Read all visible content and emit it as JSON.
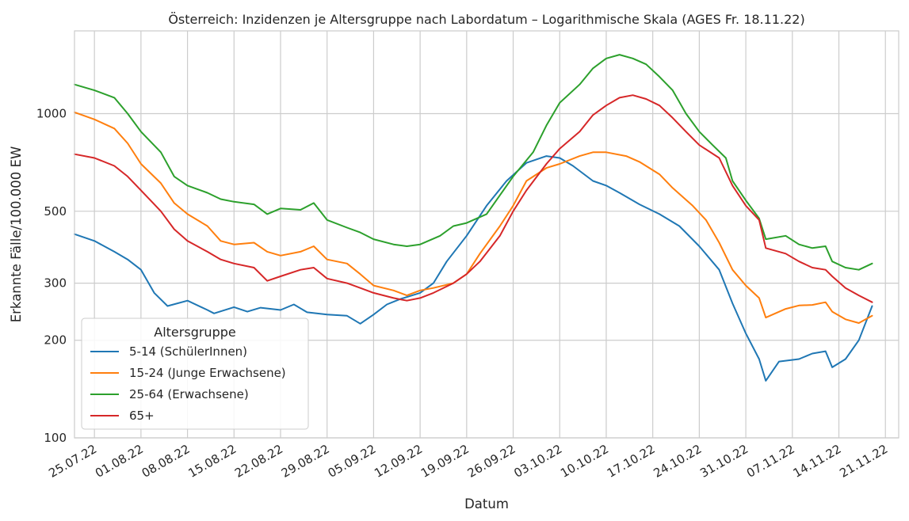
{
  "chart_data": {
    "type": "line",
    "title": "Österreich: Inzidenzen je Altersgruppe nach Labordatum – Logarithmische Skala (AGES Fr. 18.11.22)",
    "xlabel": "Datum",
    "ylabel": "Erkannte Fälle/100.000 EW",
    "yscale": "log",
    "ylim": [
      100,
      1800
    ],
    "xlim": [
      "2022-07-22",
      "2022-11-23"
    ],
    "grid": true,
    "legend_title": "Altersgruppe",
    "legend_position": "lower-left",
    "x_ticks": [
      "25.07.22",
      "01.08.22",
      "08.08.22",
      "15.08.22",
      "22.08.22",
      "29.08.22",
      "05.09.22",
      "12.09.22",
      "19.09.22",
      "26.09.22",
      "03.10.22",
      "10.10.22",
      "17.10.22",
      "24.10.22",
      "31.10.22",
      "07.11.22",
      "14.11.22",
      "21.11.22"
    ],
    "y_ticks": [
      "100",
      "200",
      "300",
      "500",
      "1000"
    ],
    "series": [
      {
        "name": "5-14 (SchülerInnen)",
        "color": "#1f77b4",
        "points": [
          [
            "2022-07-22",
            425
          ],
          [
            "2022-07-25",
            405
          ],
          [
            "2022-07-28",
            375
          ],
          [
            "2022-07-30",
            355
          ],
          [
            "2022-08-01",
            330
          ],
          [
            "2022-08-03",
            280
          ],
          [
            "2022-08-05",
            255
          ],
          [
            "2022-08-08",
            265
          ],
          [
            "2022-08-11",
            248
          ],
          [
            "2022-08-12",
            242
          ],
          [
            "2022-08-15",
            253
          ],
          [
            "2022-08-17",
            245
          ],
          [
            "2022-08-19",
            252
          ],
          [
            "2022-08-22",
            248
          ],
          [
            "2022-08-24",
            258
          ],
          [
            "2022-08-26",
            244
          ],
          [
            "2022-08-29",
            240
          ],
          [
            "2022-09-01",
            238
          ],
          [
            "2022-09-03",
            225
          ],
          [
            "2022-09-05",
            240
          ],
          [
            "2022-09-07",
            258
          ],
          [
            "2022-09-09",
            268
          ],
          [
            "2022-09-12",
            280
          ],
          [
            "2022-09-14",
            300
          ],
          [
            "2022-09-16",
            350
          ],
          [
            "2022-09-19",
            420
          ],
          [
            "2022-09-22",
            520
          ],
          [
            "2022-09-25",
            620
          ],
          [
            "2022-09-28",
            705
          ],
          [
            "2022-10-01",
            740
          ],
          [
            "2022-10-03",
            730
          ],
          [
            "2022-10-05",
            690
          ],
          [
            "2022-10-08",
            620
          ],
          [
            "2022-10-10",
            600
          ],
          [
            "2022-10-12",
            570
          ],
          [
            "2022-10-15",
            525
          ],
          [
            "2022-10-18",
            490
          ],
          [
            "2022-10-21",
            450
          ],
          [
            "2022-10-24",
            390
          ],
          [
            "2022-10-27",
            330
          ],
          [
            "2022-10-29",
            260
          ],
          [
            "2022-10-31",
            210
          ],
          [
            "2022-11-02",
            175
          ],
          [
            "2022-11-03",
            150
          ],
          [
            "2022-11-05",
            172
          ],
          [
            "2022-11-08",
            175
          ],
          [
            "2022-11-10",
            182
          ],
          [
            "2022-11-12",
            185
          ],
          [
            "2022-11-13",
            165
          ],
          [
            "2022-11-15",
            175
          ],
          [
            "2022-11-17",
            200
          ],
          [
            "2022-11-19",
            255
          ]
        ]
      },
      {
        "name": "15-24 (Junge Erwachsene)",
        "color": "#ff7f0e",
        "points": [
          [
            "2022-07-22",
            1010
          ],
          [
            "2022-07-25",
            960
          ],
          [
            "2022-07-28",
            900
          ],
          [
            "2022-07-30",
            810
          ],
          [
            "2022-08-01",
            700
          ],
          [
            "2022-08-04",
            610
          ],
          [
            "2022-08-06",
            530
          ],
          [
            "2022-08-08",
            490
          ],
          [
            "2022-08-11",
            450
          ],
          [
            "2022-08-13",
            405
          ],
          [
            "2022-08-15",
            395
          ],
          [
            "2022-08-18",
            400
          ],
          [
            "2022-08-20",
            375
          ],
          [
            "2022-08-22",
            365
          ],
          [
            "2022-08-25",
            375
          ],
          [
            "2022-08-27",
            390
          ],
          [
            "2022-08-29",
            355
          ],
          [
            "2022-09-01",
            345
          ],
          [
            "2022-09-03",
            320
          ],
          [
            "2022-09-05",
            295
          ],
          [
            "2022-09-08",
            285
          ],
          [
            "2022-09-10",
            275
          ],
          [
            "2022-09-12",
            285
          ],
          [
            "2022-09-14",
            290
          ],
          [
            "2022-09-17",
            300
          ],
          [
            "2022-09-19",
            320
          ],
          [
            "2022-09-21",
            370
          ],
          [
            "2022-09-24",
            450
          ],
          [
            "2022-09-26",
            520
          ],
          [
            "2022-09-28",
            620
          ],
          [
            "2022-10-01",
            680
          ],
          [
            "2022-10-03",
            700
          ],
          [
            "2022-10-06",
            740
          ],
          [
            "2022-10-08",
            760
          ],
          [
            "2022-10-10",
            760
          ],
          [
            "2022-10-13",
            740
          ],
          [
            "2022-10-15",
            710
          ],
          [
            "2022-10-18",
            650
          ],
          [
            "2022-10-20",
            590
          ],
          [
            "2022-10-23",
            520
          ],
          [
            "2022-10-25",
            470
          ],
          [
            "2022-10-27",
            400
          ],
          [
            "2022-10-29",
            330
          ],
          [
            "2022-10-31",
            295
          ],
          [
            "2022-11-02",
            270
          ],
          [
            "2022-11-03",
            235
          ],
          [
            "2022-11-06",
            250
          ],
          [
            "2022-11-08",
            256
          ],
          [
            "2022-11-10",
            257
          ],
          [
            "2022-11-12",
            262
          ],
          [
            "2022-11-13",
            245
          ],
          [
            "2022-11-15",
            232
          ],
          [
            "2022-11-17",
            226
          ],
          [
            "2022-11-19",
            238
          ]
        ]
      },
      {
        "name": "25-64 (Erwachsene)",
        "color": "#2ca02c",
        "points": [
          [
            "2022-07-22",
            1230
          ],
          [
            "2022-07-25",
            1180
          ],
          [
            "2022-07-28",
            1120
          ],
          [
            "2022-07-30",
            1000
          ],
          [
            "2022-08-01",
            880
          ],
          [
            "2022-08-04",
            760
          ],
          [
            "2022-08-06",
            640
          ],
          [
            "2022-08-08",
            600
          ],
          [
            "2022-08-11",
            570
          ],
          [
            "2022-08-13",
            545
          ],
          [
            "2022-08-15",
            535
          ],
          [
            "2022-08-18",
            525
          ],
          [
            "2022-08-20",
            490
          ],
          [
            "2022-08-22",
            510
          ],
          [
            "2022-08-25",
            505
          ],
          [
            "2022-08-27",
            530
          ],
          [
            "2022-08-29",
            470
          ],
          [
            "2022-09-01",
            445
          ],
          [
            "2022-09-03",
            430
          ],
          [
            "2022-09-05",
            410
          ],
          [
            "2022-09-08",
            395
          ],
          [
            "2022-09-10",
            390
          ],
          [
            "2022-09-12",
            395
          ],
          [
            "2022-09-15",
            420
          ],
          [
            "2022-09-17",
            450
          ],
          [
            "2022-09-19",
            460
          ],
          [
            "2022-09-22",
            490
          ],
          [
            "2022-09-24",
            560
          ],
          [
            "2022-09-26",
            640
          ],
          [
            "2022-09-29",
            760
          ],
          [
            "2022-10-01",
            920
          ],
          [
            "2022-10-03",
            1080
          ],
          [
            "2022-10-06",
            1230
          ],
          [
            "2022-10-08",
            1380
          ],
          [
            "2022-10-10",
            1480
          ],
          [
            "2022-10-12",
            1520
          ],
          [
            "2022-10-14",
            1480
          ],
          [
            "2022-10-16",
            1420
          ],
          [
            "2022-10-18",
            1300
          ],
          [
            "2022-10-20",
            1180
          ],
          [
            "2022-10-22",
            1000
          ],
          [
            "2022-10-24",
            880
          ],
          [
            "2022-10-26",
            800
          ],
          [
            "2022-10-28",
            730
          ],
          [
            "2022-10-29",
            620
          ],
          [
            "2022-10-31",
            540
          ],
          [
            "2022-11-02",
            475
          ],
          [
            "2022-11-03",
            410
          ],
          [
            "2022-11-06",
            420
          ],
          [
            "2022-11-08",
            395
          ],
          [
            "2022-11-10",
            385
          ],
          [
            "2022-11-12",
            390
          ],
          [
            "2022-11-13",
            350
          ],
          [
            "2022-11-15",
            335
          ],
          [
            "2022-11-17",
            330
          ],
          [
            "2022-11-19",
            345
          ]
        ]
      },
      {
        "name": "65+",
        "color": "#d62728",
        "points": [
          [
            "2022-07-22",
            750
          ],
          [
            "2022-07-25",
            730
          ],
          [
            "2022-07-28",
            690
          ],
          [
            "2022-07-30",
            640
          ],
          [
            "2022-08-01",
            580
          ],
          [
            "2022-08-04",
            500
          ],
          [
            "2022-08-06",
            440
          ],
          [
            "2022-08-08",
            405
          ],
          [
            "2022-08-11",
            375
          ],
          [
            "2022-08-13",
            355
          ],
          [
            "2022-08-15",
            345
          ],
          [
            "2022-08-18",
            335
          ],
          [
            "2022-08-20",
            305
          ],
          [
            "2022-08-22",
            315
          ],
          [
            "2022-08-25",
            330
          ],
          [
            "2022-08-27",
            335
          ],
          [
            "2022-08-29",
            310
          ],
          [
            "2022-09-01",
            300
          ],
          [
            "2022-09-03",
            290
          ],
          [
            "2022-09-05",
            280
          ],
          [
            "2022-09-08",
            270
          ],
          [
            "2022-09-10",
            265
          ],
          [
            "2022-09-12",
            270
          ],
          [
            "2022-09-14",
            280
          ],
          [
            "2022-09-17",
            300
          ],
          [
            "2022-09-19",
            320
          ],
          [
            "2022-09-21",
            350
          ],
          [
            "2022-09-24",
            420
          ],
          [
            "2022-09-26",
            500
          ],
          [
            "2022-09-28",
            580
          ],
          [
            "2022-10-01",
            700
          ],
          [
            "2022-10-03",
            780
          ],
          [
            "2022-10-06",
            880
          ],
          [
            "2022-10-08",
            990
          ],
          [
            "2022-10-10",
            1060
          ],
          [
            "2022-10-12",
            1120
          ],
          [
            "2022-10-14",
            1140
          ],
          [
            "2022-10-16",
            1110
          ],
          [
            "2022-10-18",
            1060
          ],
          [
            "2022-10-20",
            970
          ],
          [
            "2022-10-22",
            880
          ],
          [
            "2022-10-24",
            800
          ],
          [
            "2022-10-27",
            730
          ],
          [
            "2022-10-29",
            600
          ],
          [
            "2022-10-31",
            520
          ],
          [
            "2022-11-02",
            470
          ],
          [
            "2022-11-03",
            385
          ],
          [
            "2022-11-06",
            370
          ],
          [
            "2022-11-08",
            350
          ],
          [
            "2022-11-10",
            335
          ],
          [
            "2022-11-12",
            330
          ],
          [
            "2022-11-13",
            315
          ],
          [
            "2022-11-15",
            290
          ],
          [
            "2022-11-17",
            275
          ],
          [
            "2022-11-19",
            262
          ]
        ]
      }
    ]
  }
}
